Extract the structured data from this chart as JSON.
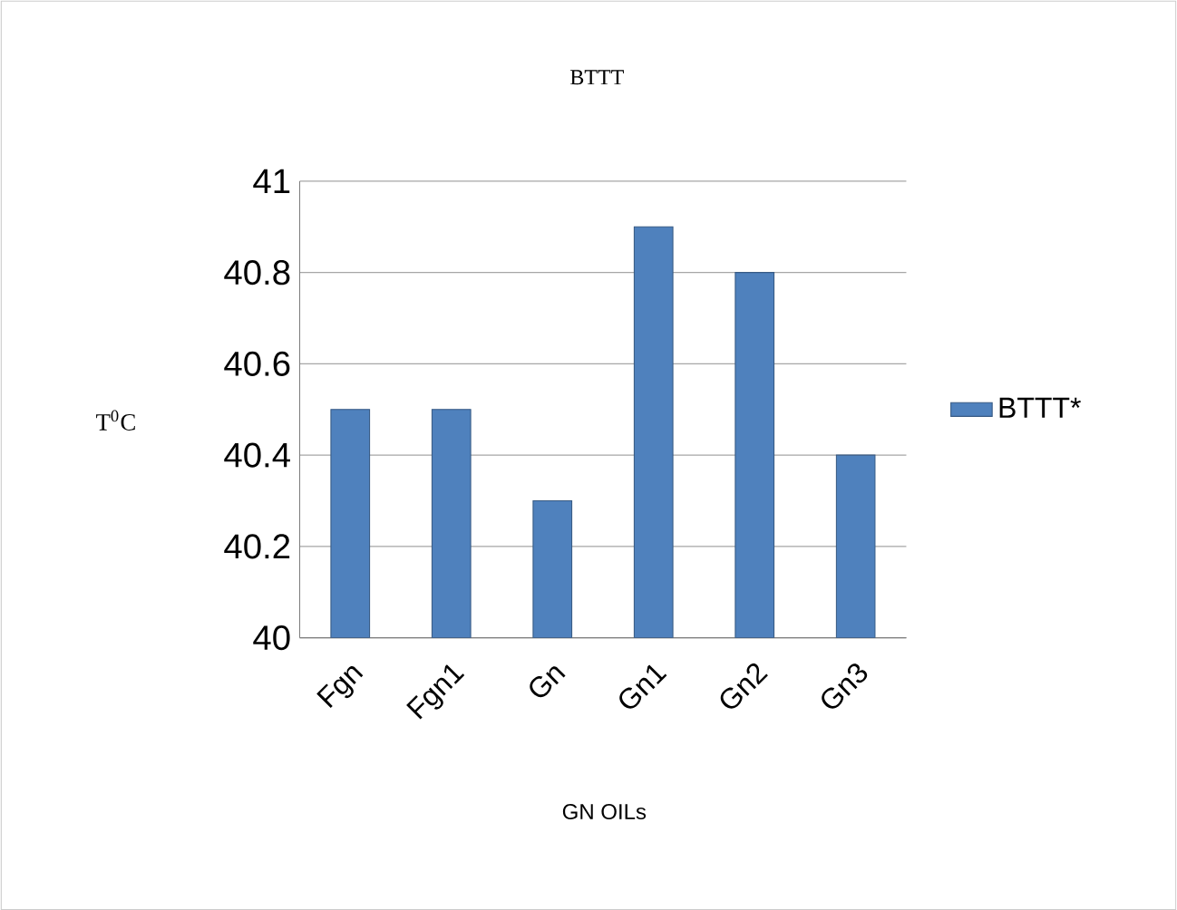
{
  "chart_data": {
    "type": "bar",
    "title": "BTTT",
    "xlabel": "GN OILs",
    "ylabel": "T$^{0}$C",
    "categories": [
      "Fgn",
      "Fgn1",
      "Gn",
      "Gn1",
      "Gn2",
      "Gn3"
    ],
    "series": [
      {
        "name": "BTTT*",
        "color": "#4f81bd",
        "values": [
          40.5,
          40.5,
          40.3,
          40.9,
          40.8,
          40.4
        ]
      }
    ],
    "ylim": [
      40,
      41
    ],
    "yticks": [
      40,
      40.2,
      40.4,
      40.6,
      40.8,
      41
    ],
    "grid": "y",
    "legend": "right"
  }
}
